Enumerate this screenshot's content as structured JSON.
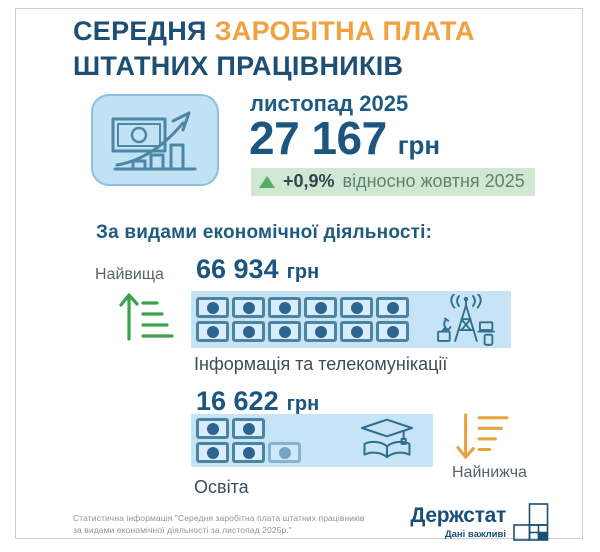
{
  "title": {
    "line1_dark": "СЕРЕДНЯ",
    "line1_orange": "ЗАРОБІТНА ПЛАТА",
    "line2": "ШТАТНИХ ПРАЦІВНИКІВ"
  },
  "hero": {
    "period": "листопад 2025",
    "amount": "27 167",
    "currency": "грн",
    "badge": {
      "percent": "+0,9%",
      "label": "відносно жовтня 2025"
    }
  },
  "section_heading": "За видами економічної діяльності:",
  "highest": {
    "tag": "Найвища",
    "amount": "66 934",
    "currency": "грн",
    "category": "Інформація та телекомунікації",
    "banknotes_full": 12,
    "banknotes_partial": 0,
    "banknote_rows": [
      [
        "full",
        "full",
        "full",
        "full",
        "full",
        "full"
      ],
      [
        "full",
        "full",
        "full",
        "full",
        "full",
        "full"
      ]
    ]
  },
  "lowest": {
    "tag": "Найнижча",
    "amount": "16 622",
    "currency": "грн",
    "category": "Освіта",
    "banknotes_full": 4,
    "banknotes_partial": 1,
    "banknote_rows": [
      [
        "full",
        "full"
      ],
      [
        "full",
        "full",
        "partial"
      ]
    ]
  },
  "footer": {
    "source_line1": "Статистична інформація \"Середня заробітна плата штатних працівників",
    "source_line2": "за видами економічної діяльності за листопад 2025р.\"",
    "logo_name": "Держстат",
    "logo_tagline": "Дані важливі"
  },
  "icons": {
    "hero": "money-growth-chart-icon",
    "badge_arrow": "triangle-up-icon",
    "highest_marker": "sort-ascending-arrow-icon",
    "highest_category": "telecom-tower-icon",
    "lowest_category": "graduation-book-icon",
    "lowest_marker": "sort-descending-arrow-icon",
    "money_unit": "banknote-icon",
    "logo": "square-grid-logo-icon"
  },
  "colors": {
    "dark_blue": "#1d4e74",
    "accent_orange": "#f0a23f",
    "band_blue": "#c7e4f6",
    "iconbox_blue": "#c0e2f4",
    "banknote_border": "#4d84a4",
    "green": "#3da04b",
    "amber": "#e8a43c",
    "badge_green_bg": "#cfe8d2",
    "label_gray": "#57636b",
    "footer_gray": "#8e9398"
  },
  "chart_data": {
    "type": "bar",
    "title": "Середня заробітна плата штатних працівників",
    "subtitle": "листопад 2025",
    "overall_value": 27167,
    "overall_unit": "грн",
    "change_vs_previous_month_pct": 0.9,
    "previous_month": "жовтень 2025",
    "grouping_label": "За видами економічної діяльності",
    "categories": [
      "Інформація та телекомунікації",
      "Освіта"
    ],
    "values": [
      66934,
      16622
    ],
    "series": [
      {
        "name": "Середня заробітна плата, грн",
        "values": [
          66934,
          16622
        ]
      }
    ],
    "ylabel": "грн",
    "annotations": [
      "Найвища: Інформація та телекомунікації — 66 934 грн",
      "Найнижча: Освіта — 16 622 грн"
    ],
    "pictogram_units": {
      "Інформація та телекомунікації": 12,
      "Освіта": 4.5
    }
  }
}
